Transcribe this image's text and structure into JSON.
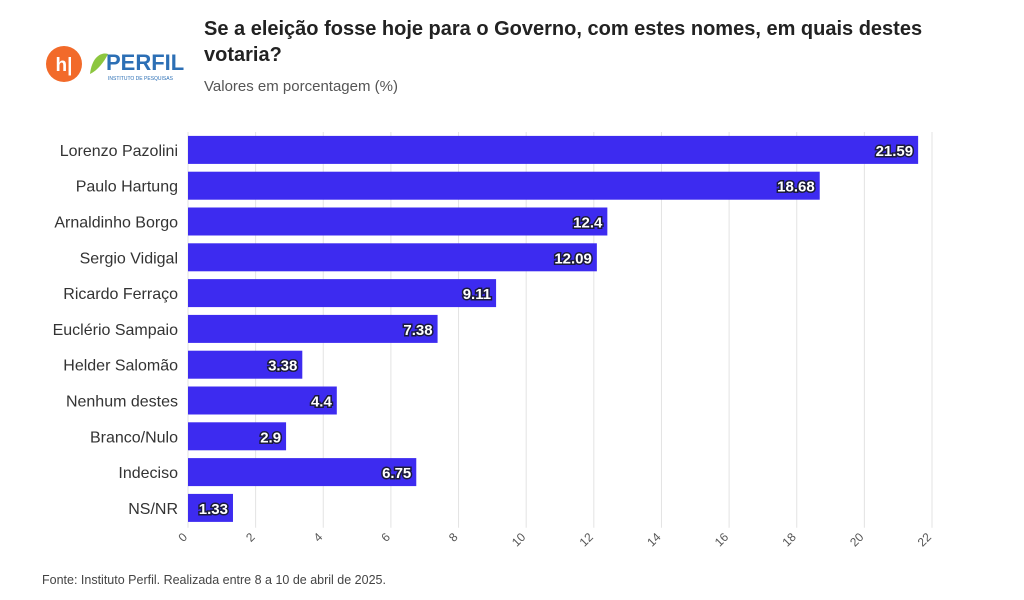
{
  "logo": {
    "mark_text": "h|",
    "brand_text": "PERFIL",
    "brand_sub": "INSTITUTO DE PESQUISAS",
    "mark_color": "#f26a2a",
    "brand_color": "#2c6fb5",
    "leaf_color": "#8cc63f"
  },
  "title": "Se a eleição fosse hoje para o Governo, com estes nomes, em quais destes votaria?",
  "subtitle": "Valores em porcentagem (%)",
  "footer": "Fonte: Instituto Perfil. Realizada entre 8 a 10 de abril de 2025.",
  "chart_data": {
    "type": "bar",
    "orientation": "horizontal",
    "bar_color": "#3d2bf0",
    "categories": [
      "Lorenzo Pazolini",
      "Paulo Hartung",
      "Arnaldinho Borgo",
      "Sergio Vidigal",
      "Ricardo Ferraço",
      "Euclério Sampaio",
      "Helder Salomão",
      "Nenhum destes",
      "Branco/Nulo",
      "Indeciso",
      "NS/NR"
    ],
    "values": [
      21.59,
      18.68,
      12.4,
      12.09,
      9.11,
      7.38,
      3.38,
      4.4,
      2.9,
      6.75,
      1.33
    ],
    "value_labels": [
      "21.59",
      "18.68",
      "12.4",
      "12.09",
      "9.11",
      "7.38",
      "3.38",
      "4.4",
      "2.9",
      "6.75",
      "1.33"
    ],
    "xlim": [
      0,
      22
    ],
    "xticks": [
      0,
      2,
      4,
      6,
      8,
      10,
      12,
      14,
      16,
      18,
      20,
      22
    ],
    "grid": true
  }
}
